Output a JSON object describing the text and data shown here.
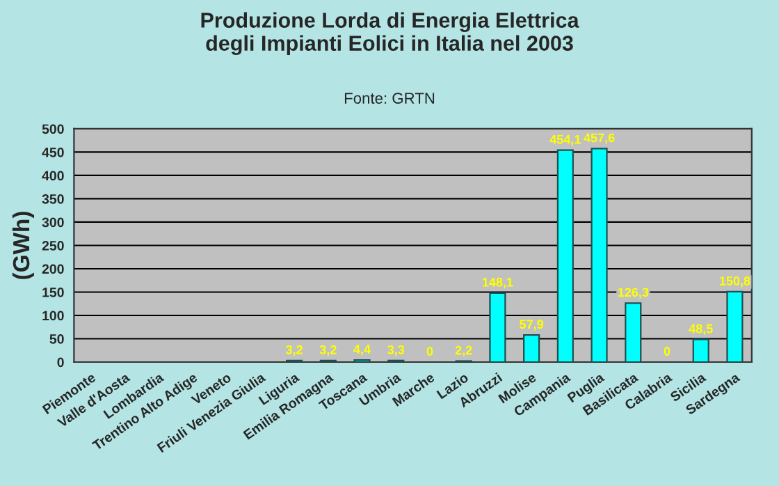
{
  "chart_data": {
    "type": "bar",
    "title": "Produzione Lorda di Energia Elettrica\ndegli Impianti Eolici in Italia nel 2003",
    "subtitle": "Fonte: GRTN",
    "ylabel": "(GWh)",
    "categories": [
      "Piemonte",
      "Valle d'Aosta",
      "Lombardia",
      "Trentino Alto Adige",
      "Veneto",
      "Friuli Venezia Giulia",
      "Liguria",
      "Emilia Romagna",
      "Toscana",
      "Umbria",
      "Marche",
      "Lazio",
      "Abruzzi",
      "Molise",
      "Campania",
      "Puglia",
      "Basilicata",
      "Calabria",
      "Sicilia",
      "Sardegna"
    ],
    "values": [
      null,
      null,
      null,
      null,
      null,
      null,
      3.2,
      3.2,
      4.4,
      3.3,
      0,
      2.2,
      148.1,
      57.9,
      454.1,
      457.6,
      126.3,
      0,
      48.5,
      150.8
    ],
    "value_labels": [
      null,
      null,
      null,
      null,
      null,
      null,
      "3,2",
      "3,2",
      "4,4",
      "3,3",
      "0",
      "2,2",
      "148,1",
      "57,9",
      "454,1",
      "457,6",
      "126,3",
      "0",
      "48,5",
      "150,8"
    ],
    "color": "#00ffff",
    "ylim": [
      0,
      500
    ],
    "yticks": [
      0,
      50,
      100,
      150,
      200,
      250,
      300,
      350,
      400,
      450,
      500
    ],
    "grid": "y"
  }
}
